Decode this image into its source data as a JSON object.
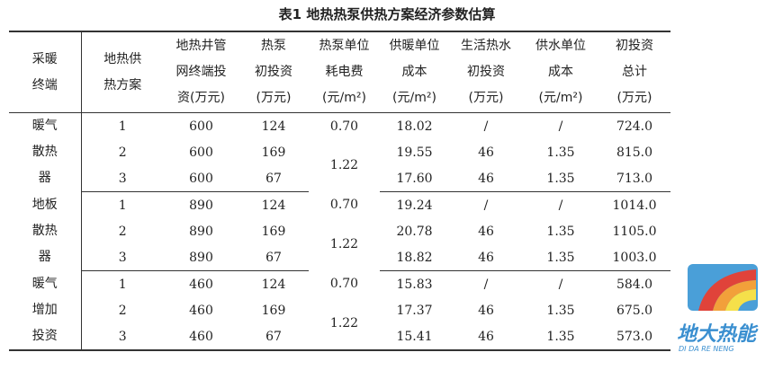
{
  "title": "表1  地热热泵供热方案经济参数估算",
  "headers": [
    [
      "采暖",
      "终端"
    ],
    [
      "地热供",
      "热方案"
    ],
    [
      "地热井管",
      "网终端投",
      "资(万元)"
    ],
    [
      "热泵",
      "初投资",
      "(万元)"
    ],
    [
      "热泵单位",
      "耗电费",
      "(元/m²)"
    ],
    [
      "供暖单位",
      "成本",
      "(元/m²)"
    ],
    [
      "生活热水",
      "初投资",
      "(万元)"
    ],
    [
      "供水单位",
      "成本",
      "(元/m²)"
    ],
    [
      "初投资",
      "总计",
      "(万元)"
    ]
  ],
  "groups": [
    {
      "terminal": [
        "暖气",
        "散热",
        "器"
      ],
      "fee": [
        "0.70",
        "1.22"
      ],
      "rows": [
        [
          "1",
          "600",
          "124",
          "18.02",
          "/",
          "/",
          "724.0"
        ],
        [
          "2",
          "600",
          "169",
          "19.55",
          "46",
          "1.35",
          "815.0"
        ],
        [
          "3",
          "600",
          "67",
          "17.60",
          "46",
          "1.35",
          "713.0"
        ]
      ]
    },
    {
      "terminal": [
        "地板",
        "散热",
        "器"
      ],
      "fee": [
        "0.70",
        "1.22"
      ],
      "rows": [
        [
          "1",
          "890",
          "124",
          "19.24",
          "/",
          "/",
          "1014.0"
        ],
        [
          "2",
          "890",
          "169",
          "20.78",
          "46",
          "1.35",
          "1105.0"
        ],
        [
          "3",
          "890",
          "67",
          "18.82",
          "46",
          "1.35",
          "1003.0"
        ]
      ]
    },
    {
      "terminal": [
        "暖气",
        "增加",
        "投资"
      ],
      "fee": [
        "0.70",
        "1.22"
      ],
      "rows": [
        [
          "1",
          "460",
          "124",
          "15.83",
          "/",
          "/",
          "584.0"
        ],
        [
          "2",
          "460",
          "169",
          "17.37",
          "46",
          "1.35",
          "675.0"
        ],
        [
          "3",
          "460",
          "67",
          "15.41",
          "46",
          "1.35",
          "573.0"
        ]
      ]
    }
  ],
  "watermark": {
    "cn": "地大热能",
    "en": "DI DA RE NENG"
  }
}
